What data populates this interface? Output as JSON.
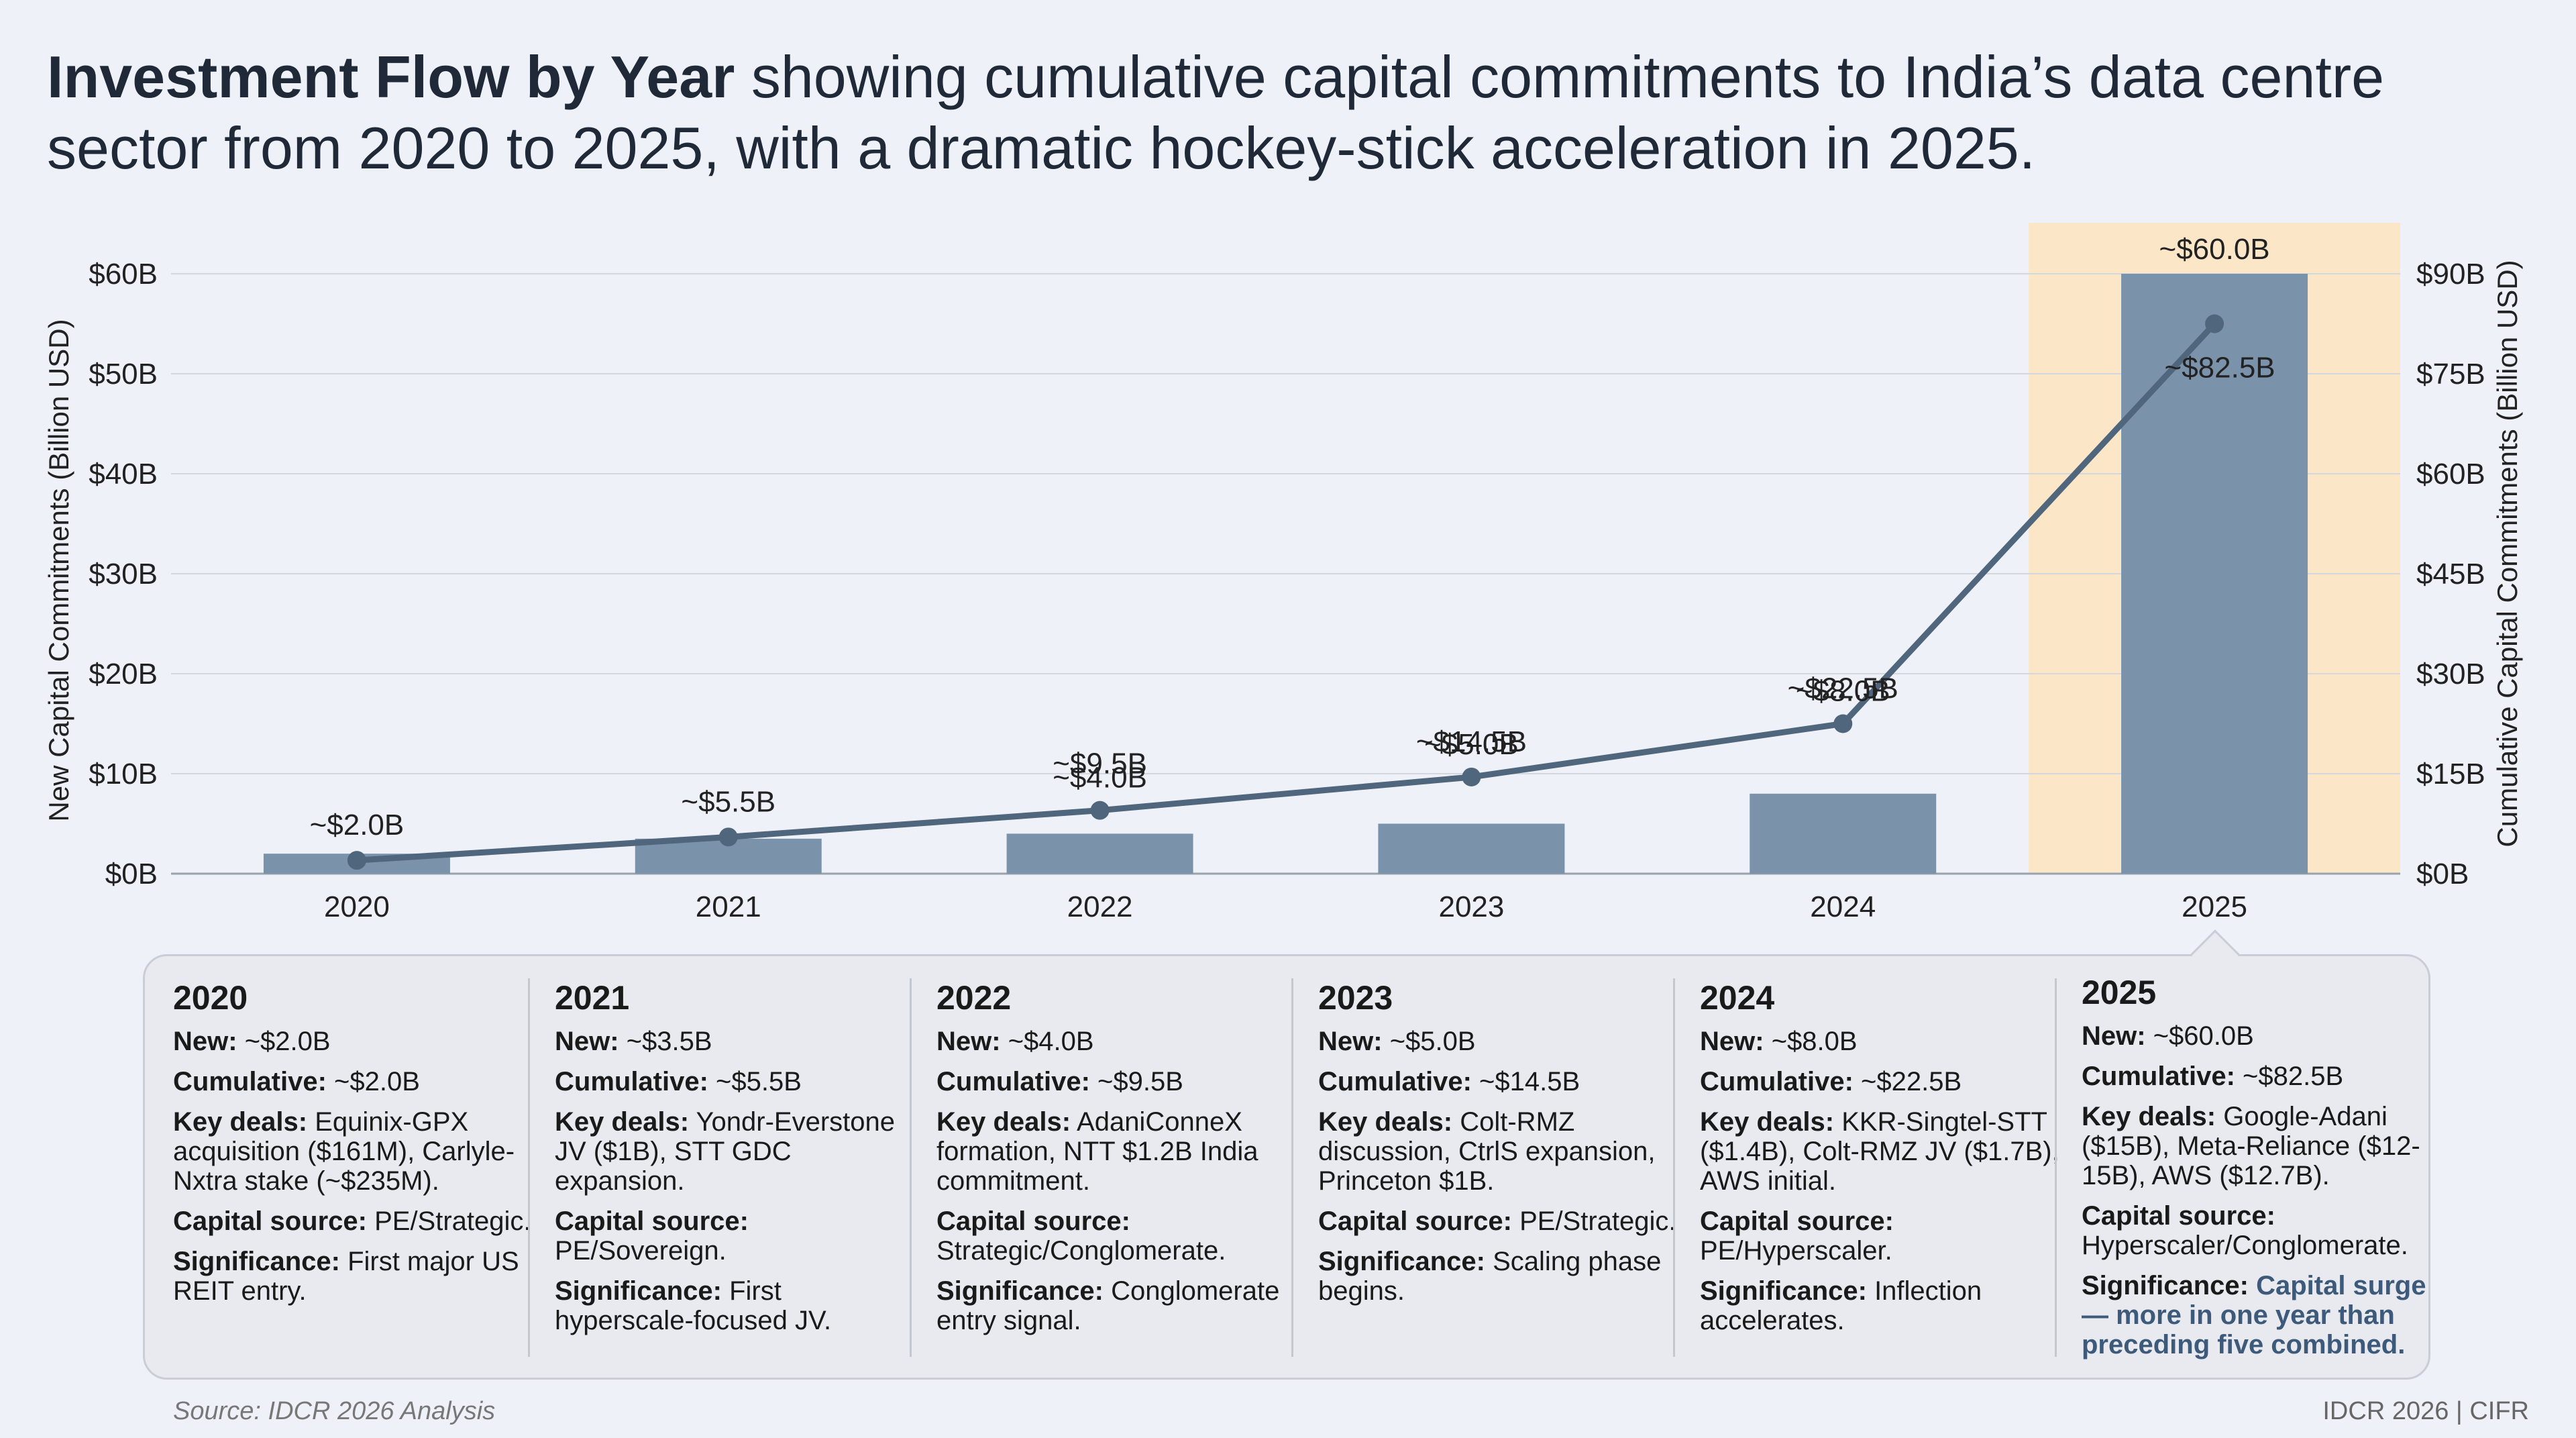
{
  "title": {
    "bold": "Investment Flow by Year",
    "rest": " showing cumulative capital commitments to India’s data centre sector from 2020 to 2025, with a dramatic hockey-stick acceleration in 2025."
  },
  "chart_data": {
    "type": "bar",
    "categories": [
      "2020",
      "2021",
      "2022",
      "2023",
      "2024",
      "2025"
    ],
    "series": [
      {
        "values": [
          2.0,
          3.5,
          4.0,
          5.0,
          8.0,
          60.0
        ],
        "type": "bar",
        "axis": "left",
        "color": "#7a93ab"
      },
      {
        "values": [
          2.0,
          5.5,
          9.5,
          14.5,
          22.5,
          82.5
        ],
        "type": "line",
        "axis": "right",
        "color": "#4f667c"
      }
    ],
    "bar_labels": [
      "",
      "",
      "~$4.0B",
      "~$5.0B",
      "~$8.0B",
      "~$60.0B"
    ],
    "line_labels": [
      "~$2.0B",
      "~$5.5B",
      "~$9.5B",
      "~$14.5B",
      "~$22.5B",
      "~$82.5B"
    ],
    "ylabel": "New Capital Commitments (Billion USD)",
    "y2label": "Cumulative Capital Commitments (Billion USD)",
    "ylim": [
      0,
      60
    ],
    "y2lim": [
      0,
      90
    ],
    "yticks": [
      "$0B",
      "$10B",
      "$20B",
      "$30B",
      "$40B",
      "$50B",
      "$60B"
    ],
    "y2ticks": [
      "$0B",
      "$15B",
      "$30B",
      "$45B",
      "$60B",
      "$75B",
      "$90B"
    ],
    "grid": true,
    "highlight_category": "2025",
    "highlight_color": "#fbe7c8"
  },
  "cards": [
    {
      "year": "2020",
      "fields": [
        {
          "label": "New:",
          "value": " ~$2.0B"
        },
        {
          "label": "Cumulative:",
          "value": " ~$2.0B"
        },
        {
          "label": "Key deals:",
          "value": " Equinix-GPX acquisition ($161M), Carlyle-Nxtra stake (~$235M)."
        },
        {
          "label": "Capital source:",
          "value": " PE/Strategic."
        },
        {
          "label": "Significance:",
          "value": " First major US REIT entry."
        }
      ]
    },
    {
      "year": "2021",
      "fields": [
        {
          "label": "New:",
          "value": " ~$3.5B"
        },
        {
          "label": "Cumulative:",
          "value": " ~$5.5B"
        },
        {
          "label": "Key deals:",
          "value": " Yondr-Everstone JV ($1B), STT GDC expansion."
        },
        {
          "label": "Capital source:",
          "value": " PE/Sovereign."
        },
        {
          "label": "Significance:",
          "value": " First hyperscale-focused JV."
        }
      ]
    },
    {
      "year": "2022",
      "fields": [
        {
          "label": "New:",
          "value": " ~$4.0B"
        },
        {
          "label": "Cumulative:",
          "value": " ~$9.5B"
        },
        {
          "label": "Key deals:",
          "value": " AdaniConneX formation, NTT $1.2B India commitment."
        },
        {
          "label": "Capital source:",
          "value": " Strategic/Conglomerate."
        },
        {
          "label": "Significance:",
          "value": " Conglomerate entry signal."
        }
      ]
    },
    {
      "year": "2023",
      "fields": [
        {
          "label": "New:",
          "value": " ~$5.0B"
        },
        {
          "label": "Cumulative:",
          "value": " ~$14.5B"
        },
        {
          "label": "Key deals:",
          "value": " Colt-RMZ discussion, CtrlS expansion, Princeton $1B."
        },
        {
          "label": "Capital source:",
          "value": " PE/Strategic."
        },
        {
          "label": "Significance:",
          "value": " Scaling phase begins."
        }
      ]
    },
    {
      "year": "2024",
      "fields": [
        {
          "label": "New:",
          "value": " ~$8.0B"
        },
        {
          "label": "Cumulative:",
          "value": " ~$22.5B"
        },
        {
          "label": "Key deals:",
          "value": " KKR-Singtel-STT ($1.4B), Colt-RMZ JV ($1.7B), AWS initial."
        },
        {
          "label": "Capital source:",
          "value": " PE/Hyperscaler."
        },
        {
          "label": "Significance:",
          "value": " Inflection accelerates."
        }
      ]
    },
    {
      "year": "2025",
      "fields": [
        {
          "label": "New:",
          "value": " ~$60.0B"
        },
        {
          "label": "Cumulative:",
          "value": " ~$82.5B"
        },
        {
          "label": "Key deals:",
          "value": " Google-Adani ($15B), Meta-Reliance ($12-15B), AWS ($12.7B)."
        },
        {
          "label": "Capital source:",
          "value": " Hyperscaler/Conglomerate."
        },
        {
          "label": "Significance:",
          "value": " Capital surge — more in one year than preceding five combined.",
          "highlight": true
        }
      ]
    }
  ],
  "footer": {
    "source": "Source: IDCR 2026 Analysis",
    "credit": "IDCR 2026 | CIFR"
  }
}
